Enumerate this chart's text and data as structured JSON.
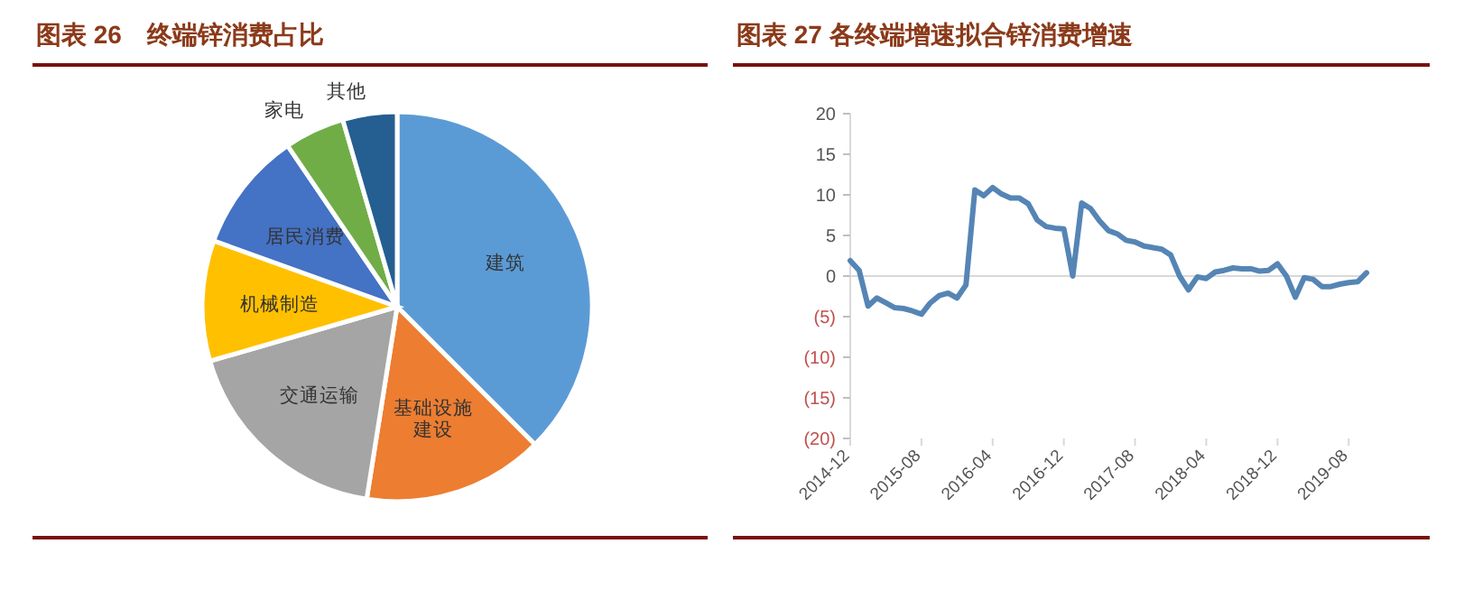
{
  "chart_data": [
    {
      "type": "pie",
      "title": "图表 26　终端锌消费占比",
      "categories": [
        "建筑",
        "基础设施建设",
        "交通运输",
        "机械制造",
        "居民消费",
        "家电",
        "其他"
      ],
      "values": [
        37.5,
        15,
        18,
        10,
        10,
        5,
        4.5
      ],
      "colors": [
        "#5b9bd5",
        "#ed7d31",
        "#a5a5a5",
        "#ffc000",
        "#4472c4",
        "#70ad47",
        "#255e91"
      ]
    },
    {
      "type": "line",
      "title": "图表 27 各终端增速拟合锌消费增速",
      "x": [
        "2014-12",
        "2015-01",
        "2015-02",
        "2015-03",
        "2015-04",
        "2015-05",
        "2015-06",
        "2015-07",
        "2015-08",
        "2015-09",
        "2015-10",
        "2015-11",
        "2015-12",
        "2016-01",
        "2016-02",
        "2016-03",
        "2016-04",
        "2016-05",
        "2016-06",
        "2016-07",
        "2016-08",
        "2016-09",
        "2016-10",
        "2016-11",
        "2016-12",
        "2017-01",
        "2017-02",
        "2017-03",
        "2017-04",
        "2017-05",
        "2017-06",
        "2017-07",
        "2017-08",
        "2017-09",
        "2017-10",
        "2017-11",
        "2017-12",
        "2018-01",
        "2018-02",
        "2018-03",
        "2018-04",
        "2018-05",
        "2018-06",
        "2018-07",
        "2018-08",
        "2018-09",
        "2018-10",
        "2018-11",
        "2018-12",
        "2019-01",
        "2019-02",
        "2019-03",
        "2019-04",
        "2019-05",
        "2019-06",
        "2019-07",
        "2019-08",
        "2019-09",
        "2019-10"
      ],
      "series": [
        {
          "color": "#5585b5",
          "values": [
            1.9,
            0.7,
            -3.7,
            -2.7,
            -3.3,
            -3.9,
            -4.0,
            -4.3,
            -4.7,
            -3.3,
            -2.4,
            -2.1,
            -2.7,
            -1.1,
            10.6,
            9.9,
            10.9,
            10.1,
            9.6,
            9.6,
            8.9,
            6.9,
            6.1,
            5.9,
            5.8,
            0,
            9.0,
            8.3,
            6.8,
            5.6,
            5.2,
            4.4,
            4.2,
            3.7,
            3.5,
            3.3,
            2.6,
            0,
            -1.7,
            -0.1,
            -0.3,
            0.5,
            0.7,
            1.0,
            0.9,
            0.9,
            0.6,
            0.7,
            1.5,
            0,
            -2.6,
            -0.2,
            -0.4,
            -1.3,
            -1.3,
            -1.0,
            -0.8,
            -0.7,
            0.4
          ]
        }
      ],
      "xlim": [
        "2014-12",
        "2019-10"
      ],
      "xticks": [
        "2014-12",
        "2015-08",
        "2016-04",
        "2016-12",
        "2017-08",
        "2018-04",
        "2018-12",
        "2019-08"
      ],
      "ylim": [
        -20,
        20
      ],
      "yticks": [
        20,
        15,
        10,
        5,
        0,
        {
          "value": -5,
          "label": "(5)"
        },
        {
          "value": -10,
          "label": "(10)"
        },
        {
          "value": -15,
          "label": "(15)"
        },
        {
          "value": -20,
          "label": "(20)"
        }
      ],
      "ref_lines": [
        {
          "axis": "y",
          "value": 0,
          "color": "#d9d9d9"
        }
      ],
      "grid": false,
      "marker": "none",
      "line_style": "solid"
    }
  ]
}
